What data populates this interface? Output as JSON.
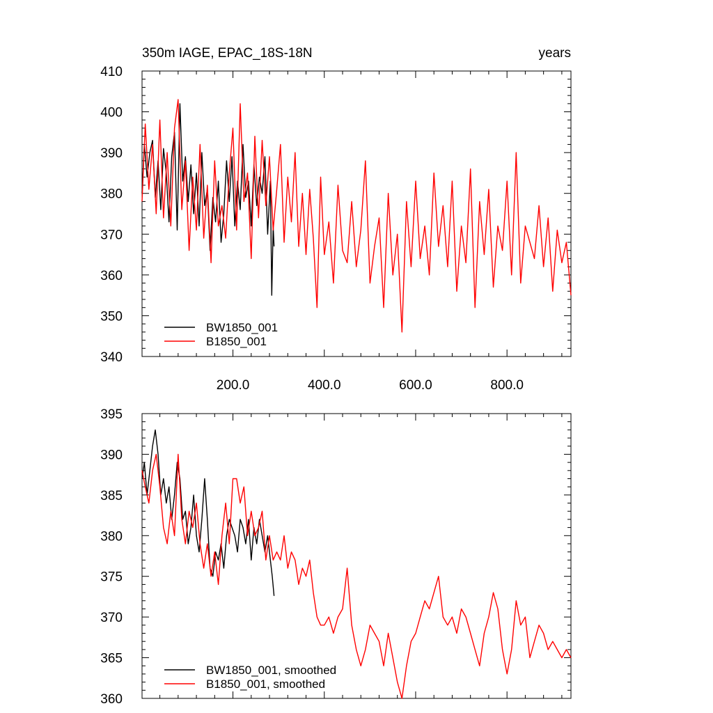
{
  "chart_data": [
    {
      "type": "line",
      "title": "350m IAGE, EPAC_18S-18N",
      "units": "years",
      "xlim": [
        1,
        940
      ],
      "ylim": [
        340,
        410
      ],
      "yticks": [
        340,
        350,
        360,
        370,
        380,
        390,
        400,
        410
      ],
      "xticks": [
        200,
        400,
        600,
        800
      ],
      "xtick_labels": [
        "200.0",
        "400.0",
        "600.0",
        "800.0"
      ],
      "legend_position": "bottom-left",
      "series": [
        {
          "name": "BW1850_001",
          "color": "#000000",
          "x": [
            1,
            6,
            12,
            18,
            24,
            30,
            36,
            42,
            48,
            54,
            60,
            66,
            72,
            78,
            84,
            90,
            96,
            102,
            108,
            114,
            120,
            126,
            132,
            138,
            144,
            150,
            156,
            162,
            168,
            174,
            180,
            186,
            192,
            198,
            204,
            210,
            216,
            222,
            228,
            234,
            240,
            246,
            252,
            258,
            264,
            270,
            276,
            282,
            285,
            288,
            290
          ],
          "values": [
            380,
            392,
            384,
            390,
            393,
            379,
            388,
            376,
            391,
            385,
            373,
            389,
            395,
            371,
            402,
            383,
            389,
            378,
            387,
            375,
            385,
            372,
            390,
            377,
            381,
            366,
            379,
            373,
            383,
            368,
            375,
            388,
            378,
            389,
            372,
            383,
            376,
            392,
            379,
            383,
            372,
            387,
            377,
            384,
            380,
            389,
            370,
            383,
            355,
            372,
            367
          ]
        },
        {
          "name": "B1850_001",
          "color": "#ff0000",
          "x": [
            1,
            8,
            16,
            24,
            32,
            40,
            48,
            56,
            64,
            72,
            80,
            88,
            96,
            104,
            112,
            120,
            128,
            136,
            144,
            152,
            160,
            168,
            176,
            184,
            192,
            200,
            208,
            216,
            224,
            232,
            240,
            248,
            256,
            264,
            272,
            280,
            288,
            296,
            304,
            312,
            320,
            328,
            336,
            344,
            352,
            360,
            368,
            376,
            384,
            392,
            400,
            410,
            420,
            430,
            440,
            450,
            460,
            470,
            480,
            490,
            500,
            510,
            520,
            530,
            540,
            550,
            560,
            570,
            580,
            590,
            600,
            610,
            620,
            630,
            640,
            650,
            660,
            670,
            680,
            690,
            700,
            710,
            720,
            730,
            740,
            750,
            760,
            770,
            780,
            790,
            800,
            810,
            820,
            830,
            840,
            850,
            860,
            870,
            880,
            890,
            900,
            910,
            920,
            930,
            940
          ],
          "values": [
            378,
            397,
            381,
            392,
            375,
            398,
            374,
            390,
            372,
            396,
            403,
            376,
            388,
            366,
            384,
            371,
            392,
            369,
            382,
            363,
            388,
            372,
            377,
            369,
            385,
            396,
            371,
            402,
            378,
            385,
            364,
            394,
            374,
            393,
            377,
            389,
            371,
            381,
            392,
            368,
            384,
            373,
            390,
            367,
            380,
            365,
            381,
            369,
            352,
            384,
            365,
            373,
            358,
            382,
            366,
            363,
            378,
            362,
            371,
            388,
            358,
            367,
            374,
            352,
            380,
            360,
            370,
            346,
            378,
            362,
            383,
            364,
            372,
            360,
            385,
            367,
            377,
            362,
            383,
            356,
            372,
            363,
            386,
            352,
            378,
            365,
            381,
            357,
            372,
            366,
            383,
            360,
            390,
            358,
            372,
            368,
            364,
            377,
            362,
            374,
            356,
            371,
            363,
            368,
            355
          ]
        }
      ]
    },
    {
      "type": "line",
      "title": "",
      "xlim": [
        1,
        940
      ],
      "ylim": [
        360,
        395
      ],
      "yticks": [
        360,
        365,
        370,
        375,
        380,
        385,
        390,
        395
      ],
      "legend_position": "bottom-left",
      "series": [
        {
          "name": "BW1850_001, smoothed",
          "color": "#000000",
          "x": [
            1,
            6,
            12,
            18,
            24,
            30,
            36,
            42,
            48,
            54,
            60,
            66,
            72,
            78,
            84,
            90,
            96,
            102,
            108,
            114,
            120,
            126,
            132,
            138,
            144,
            150,
            156,
            162,
            168,
            174,
            180,
            186,
            192,
            198,
            204,
            210,
            216,
            222,
            228,
            234,
            240,
            246,
            252,
            258,
            264,
            270,
            276,
            282,
            286,
            290
          ],
          "values": [
            387,
            389,
            385,
            388,
            391,
            393,
            390,
            385,
            387,
            384,
            386,
            382,
            385,
            389,
            387,
            382,
            383,
            379,
            381,
            385,
            380,
            378,
            382,
            387,
            382,
            376,
            375,
            378,
            377,
            379,
            376,
            380,
            382,
            381,
            380,
            378,
            382,
            381,
            379,
            382,
            377,
            381,
            379,
            382,
            380,
            378,
            380,
            377,
            375,
            372.6
          ]
        },
        {
          "name": "B1850_001, smoothed",
          "color": "#ff0000",
          "x": [
            1,
            8,
            16,
            24,
            32,
            40,
            48,
            56,
            64,
            72,
            80,
            88,
            96,
            104,
            112,
            120,
            128,
            136,
            144,
            152,
            160,
            168,
            176,
            184,
            192,
            200,
            208,
            216,
            224,
            232,
            240,
            248,
            256,
            264,
            272,
            280,
            288,
            296,
            304,
            312,
            320,
            328,
            336,
            344,
            352,
            360,
            368,
            376,
            384,
            392,
            400,
            410,
            420,
            430,
            440,
            450,
            460,
            470,
            480,
            490,
            500,
            510,
            520,
            530,
            540,
            550,
            560,
            570,
            580,
            590,
            600,
            610,
            620,
            630,
            640,
            650,
            660,
            670,
            680,
            690,
            700,
            710,
            720,
            730,
            740,
            750,
            760,
            770,
            780,
            790,
            800,
            810,
            820,
            830,
            840,
            850,
            860,
            870,
            880,
            890,
            900,
            910,
            920,
            930,
            940
          ],
          "values": [
            388,
            386,
            384,
            388,
            390,
            386,
            381,
            379,
            383,
            380,
            390,
            382,
            379,
            383,
            381,
            384,
            379,
            376,
            379,
            375,
            378,
            374,
            380,
            384,
            379,
            387,
            387,
            384,
            386,
            380,
            383,
            380,
            381,
            383,
            377,
            380,
            377,
            378,
            377,
            380,
            376,
            378,
            377,
            374,
            376,
            375,
            377,
            373,
            370,
            369,
            369,
            370,
            368,
            370,
            371,
            376,
            369,
            366,
            364,
            366,
            369,
            368,
            367,
            364,
            368,
            365,
            362,
            360,
            364,
            367,
            368,
            370,
            372,
            371,
            373,
            375,
            370,
            369,
            370,
            368,
            371,
            370,
            368,
            366,
            364,
            368,
            370,
            373,
            371,
            366,
            363,
            366,
            372,
            369,
            370,
            365,
            367,
            369,
            368,
            366,
            367,
            366,
            365,
            366,
            365
          ]
        }
      ]
    }
  ]
}
